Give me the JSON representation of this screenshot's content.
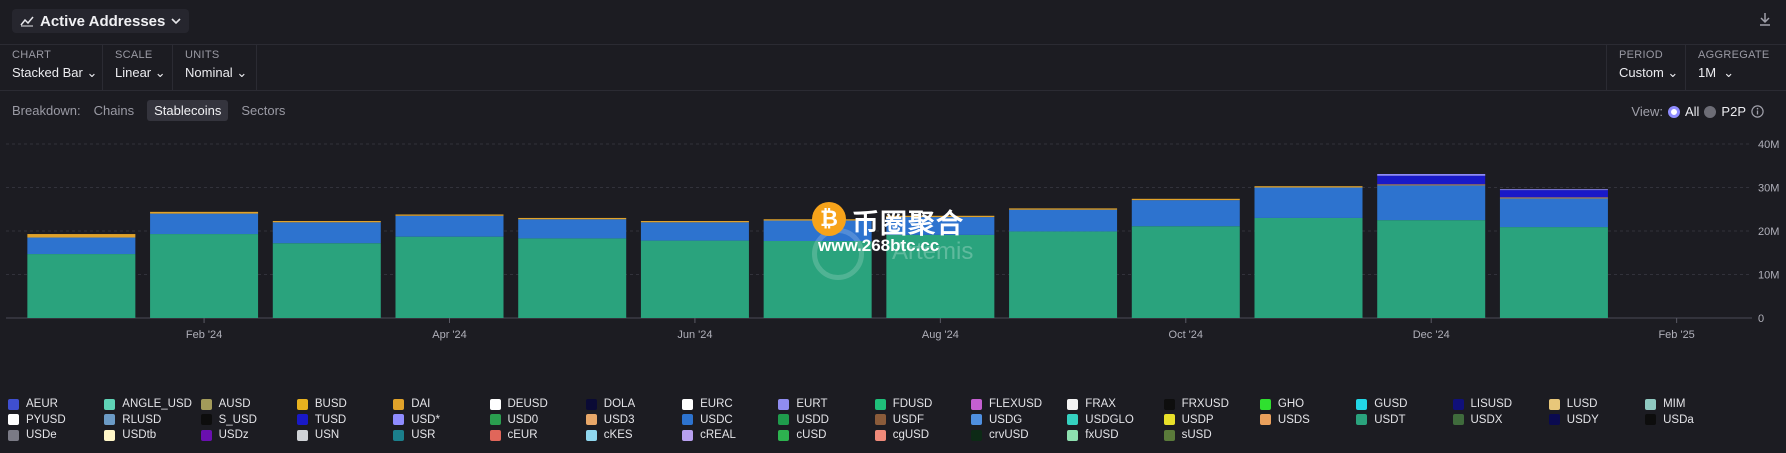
{
  "header": {
    "title": "Active Addresses",
    "chevron": "chevron-down-icon",
    "download_icon": "download-icon"
  },
  "controls": [
    {
      "label": "CHART",
      "value": "Stacked Bar"
    },
    {
      "label": "SCALE",
      "value": "Linear"
    },
    {
      "label": "UNITS",
      "value": "Nominal"
    },
    {
      "label": "PERIOD",
      "value": "Custom"
    },
    {
      "label": "AGGREGATE",
      "value": "1M"
    }
  ],
  "breakdown": {
    "label": "Breakdown:",
    "options": [
      "Chains",
      "Stablecoins",
      "Sectors"
    ],
    "selected": "Stablecoins"
  },
  "view": {
    "label": "View:",
    "options": [
      "All",
      "P2P"
    ],
    "selected": "All"
  },
  "watermark": {
    "coin_symbol": "₿",
    "site_name": "币圈聚合",
    "url": "www.268btc.cc",
    "brand": "Artemis"
  },
  "chart_data": {
    "type": "bar",
    "stacked": true,
    "categories": [
      "Jan '24",
      "Feb '24",
      "Mar '24",
      "Apr '24",
      "May '24",
      "Jun '24",
      "Jul '24",
      "Aug '24",
      "Sep '24",
      "Oct '24",
      "Nov '24",
      "Dec '24",
      "Jan '25",
      "Feb '25"
    ],
    "x_tick_labels": [
      "Feb '24",
      "Apr '24",
      "Jun '24",
      "Aug '24",
      "Oct '24",
      "Dec '24",
      "Feb '25"
    ],
    "y_tick_labels": [
      "0",
      "10M",
      "20M",
      "30M",
      "40M"
    ],
    "ylim": [
      0,
      40000000
    ],
    "grid": true,
    "series": [
      {
        "name": "USDT",
        "color": "#2aa37d",
        "values": [
          14700000,
          19300000,
          17200000,
          18700000,
          18300000,
          17800000,
          17700000,
          19100000,
          19900000,
          21100000,
          23000000,
          22500000,
          20900000,
          0
        ]
      },
      {
        "name": "USDC",
        "color": "#2d73cf",
        "values": [
          3800000,
          4700000,
          4800000,
          4800000,
          4400000,
          4200000,
          4700000,
          4100000,
          5000000,
          6000000,
          7000000,
          8000000,
          6600000,
          0
        ]
      },
      {
        "name": "DAI",
        "color": "#e0a22a",
        "values": [
          800000,
          400000,
          300000,
          300000,
          300000,
          300000,
          300000,
          300000,
          300000,
          300000,
          300000,
          200000,
          200000,
          0
        ]
      },
      {
        "name": "TUSD",
        "color": "#1919c8",
        "values": [
          0,
          0,
          0,
          0,
          0,
          0,
          0,
          0,
          0,
          0,
          0,
          2000000,
          1700000,
          0
        ]
      },
      {
        "name": "USD*",
        "color": "#8f8cff",
        "values": [
          0,
          0,
          0,
          0,
          0,
          0,
          0,
          0,
          0,
          0,
          0,
          400000,
          200000,
          0
        ]
      }
    ]
  },
  "legend": [
    {
      "name": "AEUR",
      "color": "#3f4fd0"
    },
    {
      "name": "ANGLE_USD",
      "color": "#5fd3b6"
    },
    {
      "name": "AUSD",
      "color": "#a39b5a"
    },
    {
      "name": "BUSD",
      "color": "#e8b21f"
    },
    {
      "name": "DAI",
      "color": "#e0a22a"
    },
    {
      "name": "DEUSD",
      "color": "#ffffff"
    },
    {
      "name": "DOLA",
      "color": "#0a0a35"
    },
    {
      "name": "EURC",
      "color": "#ffffff"
    },
    {
      "name": "EURT",
      "color": "#8f8cf0"
    },
    {
      "name": "FDUSD",
      "color": "#1fbf7a"
    },
    {
      "name": "FLEXUSD",
      "color": "#c55fd1"
    },
    {
      "name": "FRAX",
      "color": "#f4f4f4"
    },
    {
      "name": "FRXUSD",
      "color": "#0e0e0e"
    },
    {
      "name": "GHO",
      "color": "#2fe02f"
    },
    {
      "name": "GUSD",
      "color": "#22d6e6"
    },
    {
      "name": "LISUSD",
      "color": "#10107a"
    },
    {
      "name": "LUSD",
      "color": "#e8c77a"
    },
    {
      "name": "MIM",
      "color": "#8fc9c1"
    },
    {
      "name": "PYUSD",
      "color": "#ffffff"
    },
    {
      "name": "RLUSD",
      "color": "#6b9bc6"
    },
    {
      "name": "S_USD",
      "color": "#0d0d0d"
    },
    {
      "name": "TUSD",
      "color": "#1919c8"
    },
    {
      "name": "USD*",
      "color": "#8f8cff"
    },
    {
      "name": "USD0",
      "color": "#2a9e4f"
    },
    {
      "name": "USD3",
      "color": "#e8a768"
    },
    {
      "name": "USDC",
      "color": "#2d73cf"
    },
    {
      "name": "USDD",
      "color": "#1f9b4c"
    },
    {
      "name": "USDF",
      "color": "#8a5b3a"
    },
    {
      "name": "USDG",
      "color": "#4f8fe0"
    },
    {
      "name": "USDGLO",
      "color": "#35d1c0"
    },
    {
      "name": "USDP",
      "color": "#e8e02a"
    },
    {
      "name": "USDS",
      "color": "#eaa05c"
    },
    {
      "name": "USDT",
      "color": "#2aa37d"
    },
    {
      "name": "USDX",
      "color": "#3f6b3c"
    },
    {
      "name": "USDY",
      "color": "#0a0a50"
    },
    {
      "name": "USDa",
      "color": "#0d0d0d"
    },
    {
      "name": "USDe",
      "color": "#7a7a85"
    },
    {
      "name": "USDtb",
      "color": "#fff6c8"
    },
    {
      "name": "USDz",
      "color": "#6a0fb0"
    },
    {
      "name": "USN",
      "color": "#cfd2d6"
    },
    {
      "name": "USR",
      "color": "#1b7f8c"
    },
    {
      "name": "cEUR",
      "color": "#e0665a"
    },
    {
      "name": "cKES",
      "color": "#8fd6ee"
    },
    {
      "name": "cREAL",
      "color": "#b8a0f0"
    },
    {
      "name": "cUSD",
      "color": "#2db34f"
    },
    {
      "name": "cgUSD",
      "color": "#ef8a7a"
    },
    {
      "name": "crvUSD",
      "color": "#0d2a16"
    },
    {
      "name": "fxUSD",
      "color": "#8ee0b0"
    },
    {
      "name": "sUSD",
      "color": "#5a7a3a"
    }
  ]
}
